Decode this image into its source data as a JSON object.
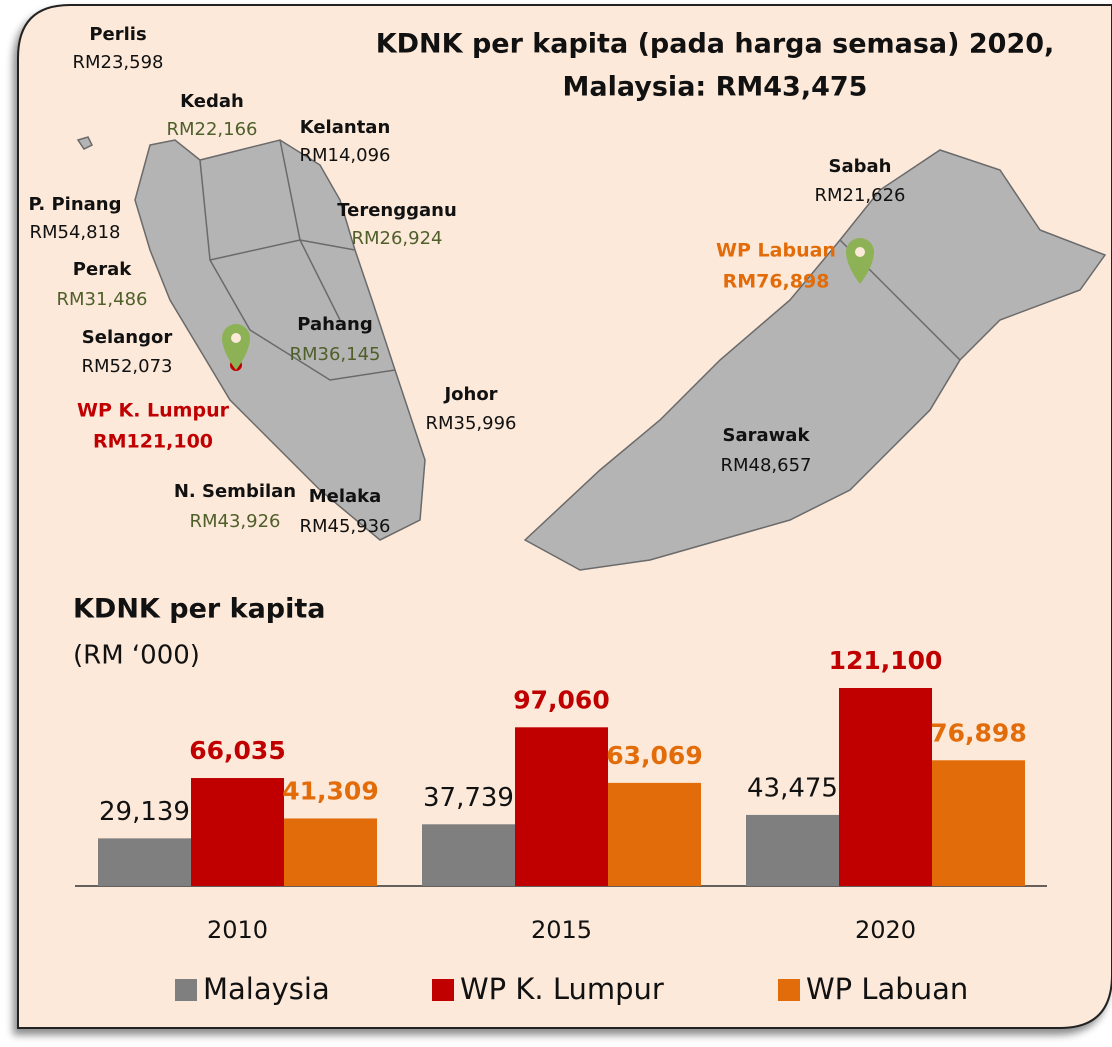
{
  "title": [
    "KDNK per kapita (pada harga semasa) 2020,",
    "Malaysia: RM43,475"
  ],
  "map": {
    "labels": [
      {
        "name": "Perlis",
        "value": "RM23,598"
      },
      {
        "name": "Kedah",
        "value": "RM22,166"
      },
      {
        "name": "Kelantan",
        "value": "RM14,096"
      },
      {
        "name": "P. Pinang",
        "value": "RM54,818"
      },
      {
        "name": "Terengganu",
        "value": "RM26,924"
      },
      {
        "name": "Perak",
        "value": "RM31,486"
      },
      {
        "name": "Selangor",
        "value": "RM52,073"
      },
      {
        "name": "Pahang",
        "value": "RM36,145"
      },
      {
        "name": "WP K. Lumpur",
        "value": "RM121,100"
      },
      {
        "name": "Johor",
        "value": "RM35,996"
      },
      {
        "name": "N. Sembilan",
        "value": "RM43,926"
      },
      {
        "name": "Melaka",
        "value": "RM45,936"
      },
      {
        "name": "Sabah",
        "value": "RM21,626"
      },
      {
        "name": "WP Labuan",
        "value": "RM76,898"
      },
      {
        "name": "Sarawak",
        "value": "RM48,657"
      }
    ]
  },
  "chart_data": {
    "type": "bar",
    "title": "KDNK per kapita",
    "subtitle": "(RM ‘000)",
    "categories": [
      "2010",
      "2015",
      "2020"
    ],
    "series": [
      {
        "name": "Malaysia",
        "color": "#7f7f7f",
        "values": [
          29139,
          37739,
          43475
        ],
        "value_labels": [
          "29,139",
          "37,739",
          "43,475"
        ]
      },
      {
        "name": "WP K. Lumpur",
        "color": "#c00000",
        "values": [
          66035,
          97060,
          121100
        ],
        "value_labels": [
          "66,035",
          "97,060",
          "121,100"
        ]
      },
      {
        "name": "WP Labuan",
        "color": "#e36c0a",
        "values": [
          41309,
          63069,
          76898
        ],
        "value_labels": [
          "41,309",
          "63,069",
          "76,898"
        ]
      }
    ],
    "legend": "bottom"
  }
}
